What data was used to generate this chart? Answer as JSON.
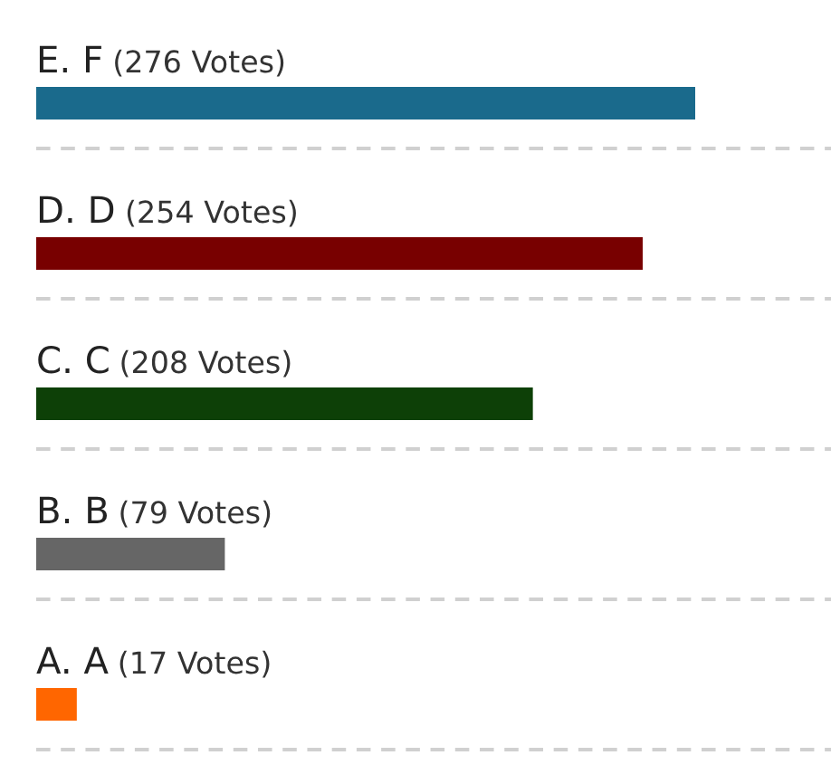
{
  "chart_data": {
    "type": "bar",
    "orientation": "horizontal",
    "categories": [
      "E. F",
      "D. D",
      "C. C",
      "B. B",
      "A. A"
    ],
    "values": [
      276,
      254,
      208,
      79,
      17
    ],
    "colors": [
      "#1a6a8c",
      "#780000",
      "#0d4007",
      "#666666",
      "#ff6600"
    ],
    "value_labels": [
      "(276 Votes)",
      "(254 Votes)",
      "(208 Votes)",
      "(79 Votes)",
      "(17 Votes)"
    ],
    "grid": "y",
    "tick_labels": "y"
  }
}
